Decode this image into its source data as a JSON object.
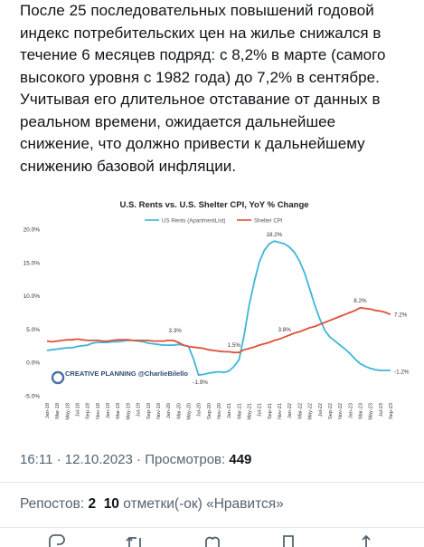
{
  "post": {
    "lines": [
      "После 25 последовательных повышений годовой",
      "индекс потребительских цен на жилье снижался в",
      "течение 6 месяцев подряд: с 8,2% в марте (самого",
      "высокого уровня с 1982 года) до 7,2% в сентябре.",
      "Учитывая его длительное отставание от данных в",
      "реальном времени, ожидается дальнейшее",
      "снижение, что должно привести к дальнейшему",
      "снижению базовой инфляции."
    ]
  },
  "meta": {
    "time": "16:11",
    "sep1": " · ",
    "date": "12.10.2023",
    "sep2": " · ",
    "views_label": "Просмотров: ",
    "views_count": "449"
  },
  "stats": {
    "reposts_label": "Репостов: ",
    "reposts_count": "2",
    "likes_count": "10",
    "likes_label": " отметки(-ок) «Нравится»"
  },
  "icons": {
    "reply": "reply-icon",
    "repost": "repost-icon",
    "like": "like-icon",
    "bookmark": "bookmark-icon",
    "share": "share-icon"
  },
  "chart_data": {
    "type": "line",
    "title": "U.S. Rents vs. U.S. Shelter CPI, YoY % Change",
    "ylim": [
      -5,
      20
    ],
    "yticks": [
      "20.0%",
      "15.0%",
      "10.0%",
      "5.0%",
      "0.0%",
      "-5.0%"
    ],
    "ytick_values": [
      20,
      15,
      10,
      5,
      0,
      -5
    ],
    "grid": false,
    "legend_position": "top-center",
    "watermark": "CREATIVE PLANNING @CharlieBilello",
    "x": [
      "Jan-18",
      "Feb-18",
      "Mar-18",
      "Apr-18",
      "May-18",
      "Jun-18",
      "Jul-18",
      "Aug-18",
      "Sep-18",
      "Oct-18",
      "Nov-18",
      "Dec-18",
      "Jan-19",
      "Feb-19",
      "Mar-19",
      "Apr-19",
      "May-19",
      "Jun-19",
      "Jul-19",
      "Aug-19",
      "Sep-19",
      "Oct-19",
      "Nov-19",
      "Dec-19",
      "Jan-20",
      "Feb-20",
      "Mar-20",
      "Apr-20",
      "May-20",
      "Jun-20",
      "Jul-20",
      "Aug-20",
      "Sep-20",
      "Oct-20",
      "Nov-20",
      "Dec-20",
      "Jan-21",
      "Feb-21",
      "Mar-21",
      "Apr-21",
      "May-21",
      "Jun-21",
      "Jul-21",
      "Aug-21",
      "Sep-21",
      "Oct-21",
      "Nov-21",
      "Dec-21",
      "Jan-22",
      "Feb-22",
      "Mar-22",
      "Apr-22",
      "May-22",
      "Jun-22",
      "Jul-22",
      "Aug-22",
      "Sep-22",
      "Oct-22",
      "Nov-22",
      "Dec-22",
      "Jan-23",
      "Feb-23",
      "Mar-23",
      "Apr-23",
      "May-23",
      "Jun-23",
      "Jul-23",
      "Aug-23",
      "Sep-23"
    ],
    "xtick_labels": [
      "Jan-18",
      "Mar-18",
      "May-18",
      "Jul-18",
      "Sep-18",
      "Nov-18",
      "Jan-19",
      "Mar-19",
      "May-19",
      "Jul-19",
      "Sep-19",
      "Nov-19",
      "Jan-20",
      "Mar-20",
      "May-20",
      "Jul-20",
      "Sep-20",
      "Nov-20",
      "Jan-21",
      "Mar-21",
      "May-21",
      "Jul-21",
      "Sep-21",
      "Nov-21",
      "Jan-22",
      "Mar-22",
      "May-22",
      "Jul-22",
      "Sep-22",
      "Nov-22",
      "Jan-23",
      "Mar-23",
      "May-23",
      "Jul-23",
      "Sep-23"
    ],
    "series": [
      {
        "name": "US Rents (ApartmentList)",
        "color": "#3fb6d6",
        "values": [
          1.8,
          1.9,
          2.0,
          2.1,
          2.2,
          2.2,
          2.4,
          2.5,
          2.6,
          2.9,
          3.0,
          3.0,
          3.0,
          3.1,
          3.1,
          3.2,
          3.3,
          3.3,
          3.2,
          3.1,
          2.9,
          2.8,
          2.7,
          2.6,
          2.6,
          2.6,
          2.7,
          2.6,
          2.4,
          0.5,
          -1.9,
          -1.8,
          -1.6,
          -1.5,
          -1.4,
          -1.5,
          -1.3,
          -0.6,
          0.4,
          4.0,
          8.5,
          12.0,
          15.0,
          16.8,
          17.8,
          18.2,
          18.0,
          17.8,
          17.3,
          16.5,
          15.2,
          13.4,
          11.0,
          8.6,
          6.5,
          4.8,
          3.8,
          3.2,
          2.6,
          2.0,
          1.3,
          0.5,
          -0.2,
          -0.6,
          -0.9,
          -1.1,
          -1.2,
          -1.2,
          -1.2
        ]
      },
      {
        "name": "Shelter CPI",
        "color": "#e0503c",
        "values": [
          3.2,
          3.1,
          3.2,
          3.3,
          3.4,
          3.4,
          3.5,
          3.4,
          3.3,
          3.3,
          3.3,
          3.2,
          3.2,
          3.3,
          3.4,
          3.4,
          3.4,
          3.3,
          3.3,
          3.3,
          3.3,
          3.2,
          3.2,
          3.2,
          3.3,
          3.3,
          3.0,
          2.6,
          2.4,
          2.3,
          2.2,
          2.1,
          1.9,
          1.8,
          1.7,
          1.6,
          1.6,
          1.5,
          1.5,
          1.9,
          2.1,
          2.3,
          2.6,
          2.8,
          3.0,
          3.3,
          3.5,
          3.8,
          4.1,
          4.4,
          4.6,
          4.9,
          5.2,
          5.4,
          5.7,
          6.0,
          6.3,
          6.6,
          6.9,
          7.2,
          7.5,
          7.8,
          8.2,
          8.1,
          8.0,
          7.8,
          7.7,
          7.5,
          7.2
        ]
      }
    ],
    "annotations": [
      "3.3%",
      "-1.9%",
      "1.5%",
      "18.2%",
      "3.8%",
      "8.2%",
      "7.2%",
      "-1.2%"
    ]
  }
}
